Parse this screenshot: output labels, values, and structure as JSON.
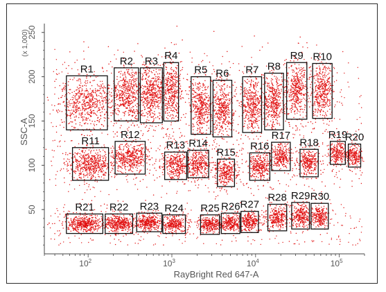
{
  "chart_data": {
    "type": "scatter",
    "title": "",
    "xlabel": "RayBright Red 647-A",
    "ylabel": "SSC-A",
    "y_scale_note": "(x 1,000)",
    "x_scale": "log",
    "xlim": [
      30,
      200000
    ],
    "ylim": [
      0,
      260
    ],
    "x_ticks": [
      {
        "base": "10",
        "exp": "2",
        "value": 100
      },
      {
        "base": "10",
        "exp": "3",
        "value": 1000
      },
      {
        "base": "10",
        "exp": "4",
        "value": 10000
      },
      {
        "base": "10",
        "exp": "5",
        "value": 100000
      }
    ],
    "y_ticks": [
      {
        "label": "50",
        "value": 50
      },
      {
        "label": "100",
        "value": 100
      },
      {
        "label": "150",
        "value": 150
      },
      {
        "label": "200",
        "value": 200
      },
      {
        "label": "250",
        "value": 250
      }
    ],
    "point_color": "#e11212",
    "gate_color": "#111111",
    "gates": [
      {
        "name": "R1",
        "x": [
          55,
          170
        ],
        "y": [
          140,
          201
        ],
        "dx": 0.16,
        "dy": 13,
        "n": 620
      },
      {
        "name": "R2",
        "x": [
          205,
          400
        ],
        "y": [
          150,
          210
        ],
        "dx": 0.08,
        "dy": 15,
        "n": 460
      },
      {
        "name": "R3",
        "x": [
          420,
          770
        ],
        "y": [
          148,
          210
        ],
        "dx": 0.07,
        "dy": 15,
        "n": 460
      },
      {
        "name": "R4",
        "x": [
          800,
          1200
        ],
        "y": [
          150,
          216
        ],
        "dx": 0.06,
        "dy": 16,
        "n": 400
      },
      {
        "name": "R5",
        "x": [
          1700,
          2900
        ],
        "y": [
          135,
          200
        ],
        "dx": 0.06,
        "dy": 14,
        "n": 400
      },
      {
        "name": "R6",
        "x": [
          3100,
          5200
        ],
        "y": [
          132,
          196
        ],
        "dx": 0.06,
        "dy": 14,
        "n": 400
      },
      {
        "name": "R7",
        "x": [
          7000,
          11800
        ],
        "y": [
          137,
          200
        ],
        "dx": 0.06,
        "dy": 14,
        "n": 400
      },
      {
        "name": "R8",
        "x": [
          12800,
          21500
        ],
        "y": [
          140,
          204
        ],
        "dx": 0.06,
        "dy": 14,
        "n": 400
      },
      {
        "name": "R9",
        "x": [
          23500,
          41000
        ],
        "y": [
          152,
          216
        ],
        "dx": 0.06,
        "dy": 15,
        "n": 400
      },
      {
        "name": "R10",
        "x": [
          48000,
          82000
        ],
        "y": [
          153,
          215
        ],
        "dx": 0.06,
        "dy": 15,
        "n": 400
      },
      {
        "name": "R11",
        "x": [
          65,
          175
        ],
        "y": [
          83,
          120
        ],
        "dx": 0.13,
        "dy": 8,
        "n": 520
      },
      {
        "name": "R12",
        "x": [
          210,
          480
        ],
        "y": [
          90,
          127
        ],
        "dx": 0.1,
        "dy": 8,
        "n": 420
      },
      {
        "name": "R13",
        "x": [
          820,
          1500
        ],
        "y": [
          84,
          115
        ],
        "dx": 0.08,
        "dy": 7,
        "n": 320
      },
      {
        "name": "R14",
        "x": [
          1550,
          2750
        ],
        "y": [
          86,
          117
        ],
        "dx": 0.07,
        "dy": 7,
        "n": 300
      },
      {
        "name": "R15",
        "x": [
          3500,
          5600
        ],
        "y": [
          76,
          107
        ],
        "dx": 0.06,
        "dy": 7,
        "n": 280
      },
      {
        "name": "R16",
        "x": [
          8500,
          14800
        ],
        "y": [
          83,
          114
        ],
        "dx": 0.07,
        "dy": 7,
        "n": 300
      },
      {
        "name": "R17",
        "x": [
          15500,
          26000
        ],
        "y": [
          94,
          126
        ],
        "dx": 0.06,
        "dy": 7,
        "n": 280
      },
      {
        "name": "R18",
        "x": [
          34000,
          56000
        ],
        "y": [
          87,
          118
        ],
        "dx": 0.06,
        "dy": 7,
        "n": 280
      },
      {
        "name": "R19",
        "x": [
          78000,
          118000
        ],
        "y": [
          101,
          127
        ],
        "dx": 0.05,
        "dy": 6,
        "n": 230
      },
      {
        "name": "R20",
        "x": [
          128000,
          180000
        ],
        "y": [
          98,
          124
        ],
        "dx": 0.05,
        "dy": 6,
        "n": 230
      },
      {
        "name": "R21",
        "x": [
          55,
          150
        ],
        "y": [
          23,
          45
        ],
        "dx": 0.1,
        "dy": 4,
        "n": 460
      },
      {
        "name": "R22",
        "x": [
          160,
          340
        ],
        "y": [
          23,
          45
        ],
        "dx": 0.09,
        "dy": 4,
        "n": 400
      },
      {
        "name": "R23",
        "x": [
          380,
          760
        ],
        "y": [
          25,
          46
        ],
        "dx": 0.07,
        "dy": 4,
        "n": 320
      },
      {
        "name": "R24",
        "x": [
          780,
          1450
        ],
        "y": [
          23,
          44
        ],
        "dx": 0.07,
        "dy": 4,
        "n": 300
      },
      {
        "name": "R25",
        "x": [
          2200,
          3700
        ],
        "y": [
          22,
          44
        ],
        "dx": 0.06,
        "dy": 4,
        "n": 280
      },
      {
        "name": "R26",
        "x": [
          3900,
          6500
        ],
        "y": [
          23,
          46
        ],
        "dx": 0.06,
        "dy": 4,
        "n": 280
      },
      {
        "name": "R27",
        "x": [
          6700,
          10800
        ],
        "y": [
          24,
          48
        ],
        "dx": 0.06,
        "dy": 5,
        "n": 260
      },
      {
        "name": "R28",
        "x": [
          14000,
          23500
        ],
        "y": [
          26,
          56
        ],
        "dx": 0.06,
        "dy": 6,
        "n": 260
      },
      {
        "name": "R29",
        "x": [
          27000,
          44000
        ],
        "y": [
          28,
          58
        ],
        "dx": 0.06,
        "dy": 6,
        "n": 260
      },
      {
        "name": "R30",
        "x": [
          46000,
          74000
        ],
        "y": [
          28,
          57
        ],
        "dx": 0.05,
        "dy": 6,
        "n": 240
      }
    ]
  }
}
